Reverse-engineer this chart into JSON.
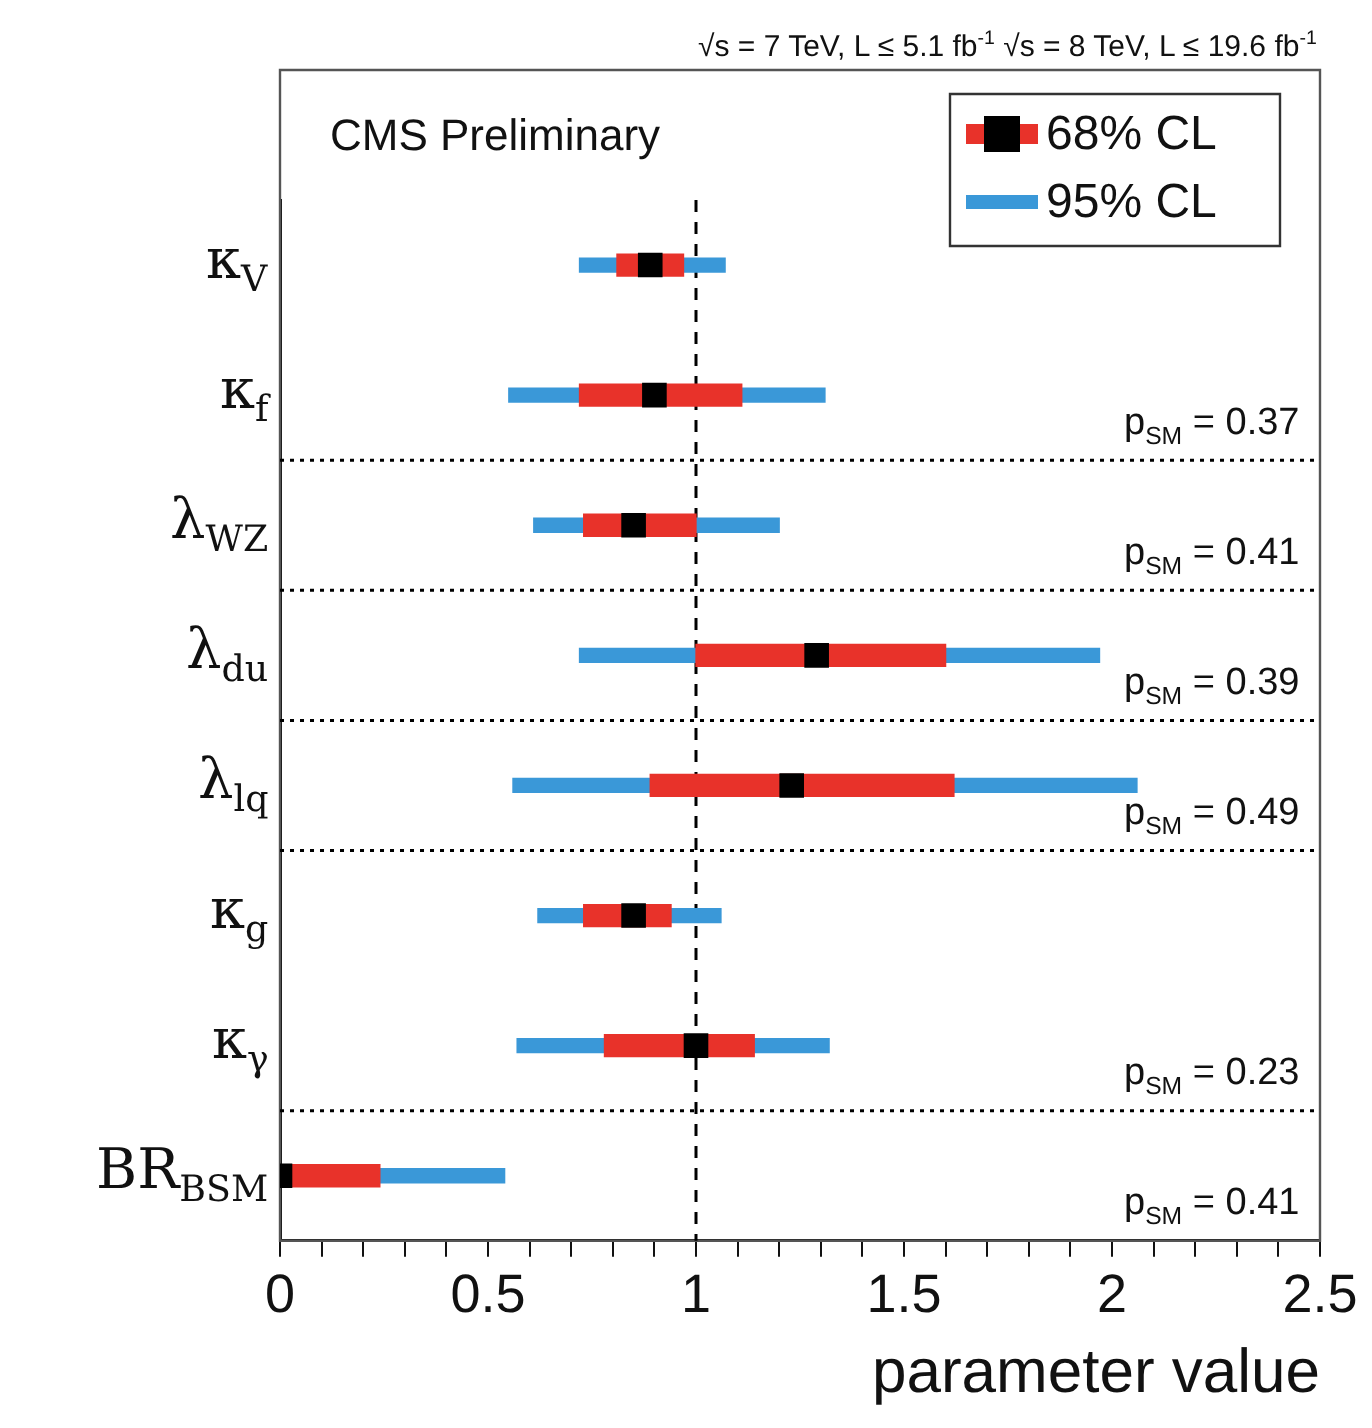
{
  "chart_data": {
    "type": "bar",
    "orientation": "horizontal",
    "title": "√s = 7 TeV, L ≤ 5.1 fb$^{-1}$  √s = 8 TeV, L ≤ 19.6 fb$^{-1}$",
    "xlabel": "parameter value",
    "categories": [
      "κ$_{V}$",
      "κ$_{f}$",
      "λ$_{WZ}$",
      "λ$_{du}$",
      "λ$_{lq}$",
      "κ$_{g}$",
      "κ$_{γ}$",
      "BR$_{BSM}$"
    ],
    "series": [
      {
        "name": "95% CL",
        "color": "#3a98d8",
        "base": [
          0.72,
          0.55,
          0.61,
          0.72,
          0.56,
          0.62,
          0.57,
          0
        ],
        "values": [
          0.35,
          0.76,
          0.59,
          1.25,
          1.5,
          0.44,
          0.75,
          0.54
        ]
      },
      {
        "name": "68% CL",
        "color": "#e8322a",
        "base": [
          0.81,
          0.72,
          0.73,
          1.0,
          0.89,
          0.73,
          0.78,
          0
        ],
        "values": [
          0.16,
          0.39,
          0.27,
          0.6,
          0.73,
          0.21,
          0.36,
          0.24
        ]
      },
      {
        "type": "scatter",
        "color": "#000000",
        "values": [
          0.89,
          0.9,
          0.85,
          1.29,
          1.23,
          0.85,
          1.0,
          0
        ]
      }
    ],
    "marker": "square",
    "legend": "top right",
    "xlim": [
      0,
      2.5
    ],
    "xticks": [
      0,
      {
        "value": 0.1,
        "label": null
      },
      {
        "value": 0.2,
        "label": null
      },
      {
        "value": 0.3,
        "label": null
      },
      {
        "value": 0.4,
        "label": null
      },
      0.5,
      {
        "value": 0.6,
        "label": null
      },
      {
        "value": 0.7,
        "label": null
      },
      {
        "value": 0.8,
        "label": null
      },
      {
        "value": 0.9,
        "label": null
      },
      1,
      {
        "value": 1.1,
        "label": null
      },
      {
        "value": 1.2,
        "label": null
      },
      {
        "value": 1.3,
        "label": null
      },
      {
        "value": 1.4,
        "label": null
      },
      1.5,
      {
        "value": 1.6,
        "label": null
      },
      {
        "value": 1.7,
        "label": null
      },
      {
        "value": 1.8,
        "label": null
      },
      {
        "value": 1.9,
        "label": null
      },
      2,
      {
        "value": 2.1,
        "label": null
      },
      {
        "value": 2.2,
        "label": null
      },
      {
        "value": 2.3,
        "label": null
      },
      {
        "value": 2.4,
        "label": null
      },
      2.5
    ],
    "ref_lines": [
      {
        "axis": "x",
        "value": 1,
        "line_style": "dashed",
        "color": "#000000"
      },
      {
        "axis": "y",
        "value": "κ$_{f}$",
        "line_style": "dotted",
        "color": "#000000"
      },
      {
        "axis": "y",
        "value": "λ$_{WZ}$",
        "line_style": "dotted",
        "color": "#000000"
      },
      {
        "axis": "y",
        "value": "λ$_{du}$",
        "line_style": "dotted",
        "color": "#000000"
      },
      {
        "axis": "y",
        "value": "λ$_{lq}$",
        "line_style": "dotted",
        "color": "#000000"
      },
      {
        "axis": "y",
        "value": "κ$_{γ}$",
        "line_style": "dotted",
        "color": "#000000"
      }
    ],
    "annotations": [
      "CMS Preliminary",
      "p$_{SM}$ = 0.37",
      "p$_{SM}$ = 0.41",
      "p$_{SM}$ = 0.39",
      "p$_{SM}$ = 0.49",
      "p$_{SM}$ = 0.23",
      "p$_{SM}$ = 0.41"
    ]
  }
}
